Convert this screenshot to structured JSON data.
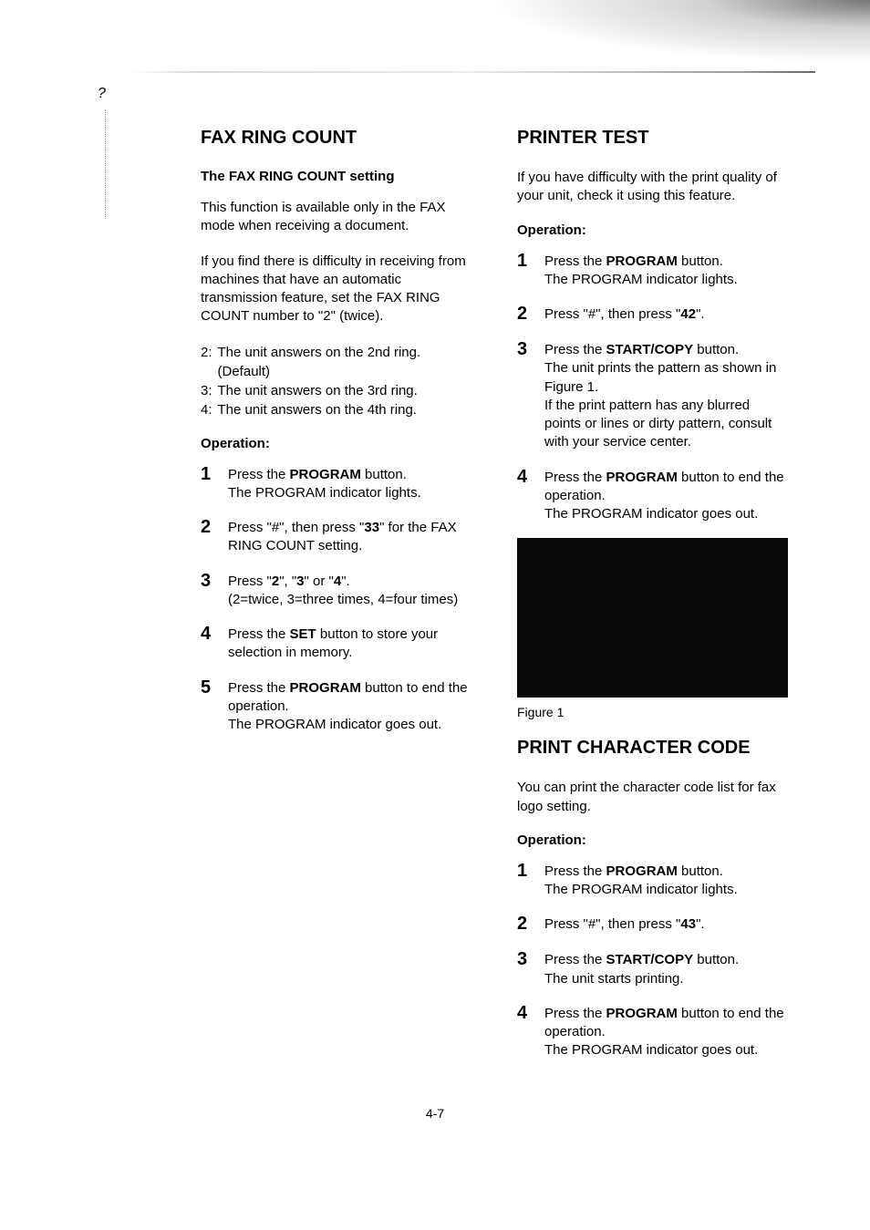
{
  "page_number": "4-7",
  "margin_mark": "?",
  "left": {
    "title": "FAX RING COUNT",
    "subtitle": "The FAX RING COUNT setting",
    "p1": "This function is available only in the FAX mode when receiving a document.",
    "p2": "If you find there is difficulty in receiving from machines that have an automatic transmission feature, set the FAX RING COUNT number to \"2\" (twice).",
    "defs": [
      {
        "k": "2:",
        "v": "The unit answers on the 2nd ring. (Default)"
      },
      {
        "k": "3:",
        "v": "The unit answers on the 3rd ring."
      },
      {
        "k": "4:",
        "v": "The unit answers on the 4th ring."
      }
    ],
    "op_label": "Operation:",
    "steps": [
      {
        "n": "1",
        "html": "Press the <b>PROGRAM</b> button.<br>The PROGRAM indicator lights."
      },
      {
        "n": "2",
        "html": "Press \"#\", then press \"<b>33</b>\" for the FAX RING COUNT setting."
      },
      {
        "n": "3",
        "html": "Press \"<b>2</b>\", \"<b>3</b>\" or \"<b>4</b>\".<br>(2=twice, 3=three times, 4=four times)"
      },
      {
        "n": "4",
        "html": "Press the <b>SET</b> button to store your selection in memory."
      },
      {
        "n": "5",
        "html": "Press the <b>PROGRAM</b> button to end the operation.<br>The PROGRAM indicator goes out."
      }
    ]
  },
  "right": {
    "s1": {
      "title": "PRINTER TEST",
      "p1": "If you have difficulty with the print quality of your unit, check it using this feature.",
      "op_label": "Operation:",
      "steps": [
        {
          "n": "1",
          "html": "Press the <b>PROGRAM</b> button.<br>The PROGRAM indicator lights."
        },
        {
          "n": "2",
          "html": "Press \"#\", then press \"<b>42</b>\"."
        },
        {
          "n": "3",
          "html": "Press the <b>START/COPY</b> button.<br>The unit prints the pattern as shown in Figure 1.<br>If the print pattern has any blurred points or lines or dirty pattern, consult with your service center."
        },
        {
          "n": "4",
          "html": "Press the <b>PROGRAM</b> button to end the operation.<br>The PROGRAM indicator goes out."
        }
      ],
      "figure_caption": "Figure 1"
    },
    "s2": {
      "title": "PRINT CHARACTER CODE",
      "p1": "You can print the character code list for fax logo setting.",
      "op_label": "Operation:",
      "steps": [
        {
          "n": "1",
          "html": "Press the <b>PROGRAM</b> button.<br>The PROGRAM indicator lights."
        },
        {
          "n": "2",
          "html": "Press \"#\", then press \"<b>43</b>\"."
        },
        {
          "n": "3",
          "html": "Press the <b>START/COPY</b> button.<br>The unit starts printing."
        },
        {
          "n": "4",
          "html": "Press the <b>PROGRAM</b> button to end the operation.<br>The PROGRAM indicator goes out."
        }
      ]
    }
  },
  "colors": {
    "text": "#000000",
    "background": "#ffffff",
    "figure_bg": "#0a0a0a"
  }
}
